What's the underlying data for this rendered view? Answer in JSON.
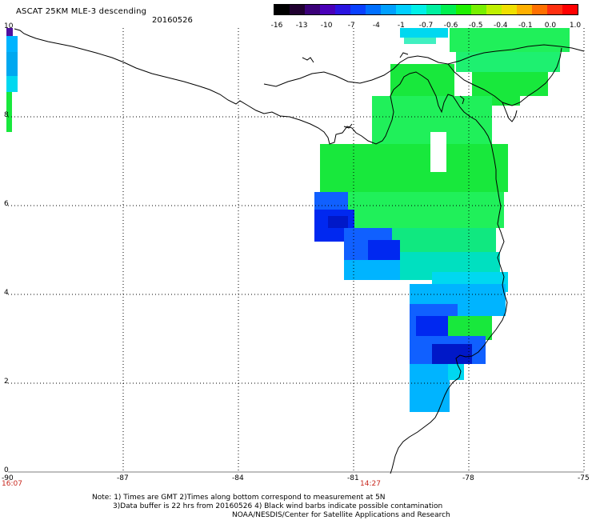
{
  "header": {
    "title": "ASCAT 25KM MLE-3 descending",
    "date": "20160526"
  },
  "colorbar": {
    "labels": [
      "-16",
      "-13",
      "-10",
      "-7",
      "-4",
      "-1",
      "-0.7",
      "-0.6",
      "-0.5",
      "-0.4",
      "-0.1",
      "0.0",
      "1.0"
    ],
    "colors": [
      "#000000",
      "#200030",
      "#3a0078",
      "#4a00b8",
      "#2a14e0",
      "#0a40ff",
      "#0070ff",
      "#00a0ff",
      "#00cfff",
      "#00f0e8",
      "#00f0a0",
      "#00f050",
      "#20f000",
      "#78f000",
      "#c0f000",
      "#f0e000",
      "#ffb000",
      "#ff7000",
      "#ff3010",
      "#ff0000"
    ]
  },
  "map": {
    "x_ticks": [
      "-90",
      "-87",
      "-84",
      "-81",
      "-78",
      "-75"
    ],
    "y_ticks": [
      "10",
      "8",
      "6",
      "4",
      "2",
      "0"
    ],
    "times": [
      "16:07",
      "14:27"
    ],
    "lon_range": [
      -90,
      -75
    ],
    "lat_range": [
      0,
      10
    ]
  },
  "notes": {
    "line1": "Note: 1) Times are GMT 2)Times along bottom correspond to measurement at 5N",
    "line2": "3)Data buffer is 22 hrs from 20160526 4) Black wind barbs indicate possible contamination",
    "line3": "NOAA/NESDIS/Center for Satellite Applications and Research"
  }
}
